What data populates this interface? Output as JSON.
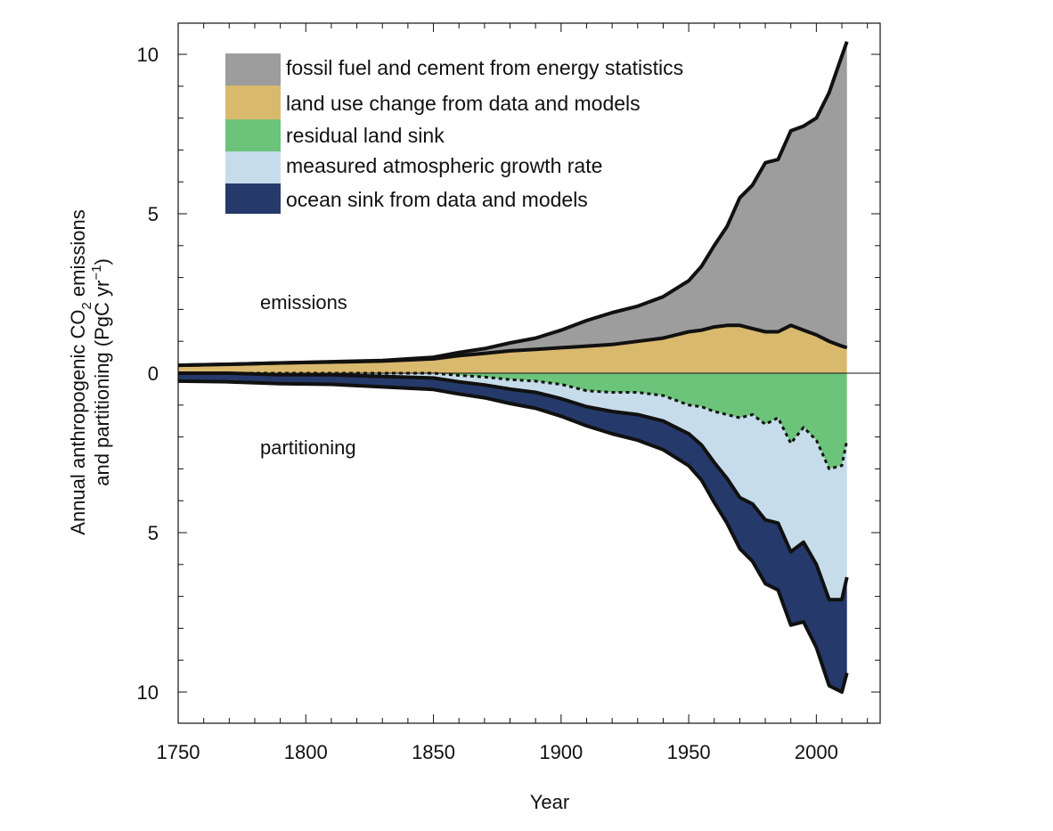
{
  "chart_data": {
    "type": "area",
    "xlabel": "Year",
    "ylabel_line1": "Annual anthropogenic CO",
    "ylabel_sub": "2",
    "ylabel_line1_end": " emissions",
    "ylabel_line2": "and partitioning (PgC yr",
    "ylabel_sup": "−1",
    "ylabel_line2_end": ")",
    "xlim": [
      1750,
      2025
    ],
    "ylim": [
      -11,
      11
    ],
    "x_ticks": [
      "1750",
      "1800",
      "1850",
      "1900",
      "1950",
      "2000"
    ],
    "x_tick_values": [
      1750,
      1800,
      1850,
      1900,
      1950,
      2000
    ],
    "y_ticks": [
      "10",
      "5",
      "0",
      "5",
      "10"
    ],
    "y_tick_values": [
      10,
      5,
      0,
      -5,
      -10
    ],
    "region_labels": {
      "emissions": "emissions",
      "partitioning": "partitioning"
    },
    "legend": {
      "placement": "top-left",
      "entries": [
        {
          "name": "fossil fuel and cement from energy statistics",
          "color": "#9d9d9d"
        },
        {
          "name": "land use change from data and models",
          "color": "#d9b96d"
        },
        {
          "name": "residual land sink",
          "color": "#6bc47a"
        },
        {
          "name": "measured atmospheric growth rate",
          "color": "#c6dcea"
        },
        {
          "name": "ocean sink from data and models",
          "color": "#253a6b"
        }
      ]
    },
    "years": [
      1750,
      1770,
      1790,
      1810,
      1830,
      1850,
      1860,
      1870,
      1880,
      1890,
      1900,
      1910,
      1920,
      1930,
      1940,
      1950,
      1955,
      1960,
      1965,
      1970,
      1975,
      1980,
      1985,
      1990,
      1995,
      2000,
      2005,
      2010,
      2012
    ],
    "series": [
      {
        "name": "land use change from data and models",
        "values": [
          0.25,
          0.28,
          0.32,
          0.35,
          0.38,
          0.45,
          0.55,
          0.62,
          0.7,
          0.75,
          0.8,
          0.85,
          0.9,
          1.0,
          1.1,
          1.3,
          1.35,
          1.45,
          1.5,
          1.5,
          1.4,
          1.3,
          1.3,
          1.5,
          1.35,
          1.2,
          1.0,
          0.85,
          0.8
        ]
      },
      {
        "name": "fossil fuel and cement from energy statistics",
        "values": [
          0.0,
          0.0,
          0.0,
          0.01,
          0.02,
          0.05,
          0.1,
          0.15,
          0.25,
          0.35,
          0.55,
          0.8,
          1.0,
          1.1,
          1.3,
          1.6,
          2.0,
          2.55,
          3.1,
          4.0,
          4.5,
          5.3,
          5.4,
          6.1,
          6.4,
          6.8,
          7.8,
          9.1,
          9.6
        ]
      },
      {
        "name": "measured atmospheric growth rate",
        "values": [
          0.0,
          0.0,
          0.05,
          0.05,
          0.1,
          0.15,
          0.2,
          0.25,
          0.3,
          0.35,
          0.45,
          0.5,
          0.6,
          0.7,
          0.8,
          0.9,
          1.2,
          1.6,
          2.0,
          2.5,
          2.8,
          3.0,
          3.3,
          3.4,
          3.6,
          3.9,
          4.1,
          4.2,
          4.3
        ]
      },
      {
        "name": "ocean sink from data and models",
        "values": [
          0.25,
          0.27,
          0.28,
          0.3,
          0.33,
          0.36,
          0.38,
          0.4,
          0.45,
          0.5,
          0.55,
          0.6,
          0.7,
          0.8,
          0.9,
          1.0,
          1.1,
          1.25,
          1.4,
          1.6,
          1.8,
          2.0,
          2.1,
          2.3,
          2.5,
          2.6,
          2.7,
          2.9,
          3.0
        ]
      },
      {
        "name": "residual land sink",
        "values": [
          0.0,
          0.0,
          0.0,
          0.0,
          0.0,
          0.0,
          0.07,
          0.12,
          0.2,
          0.25,
          0.35,
          0.55,
          0.6,
          0.6,
          0.7,
          1.0,
          1.05,
          1.2,
          1.3,
          1.4,
          1.3,
          1.6,
          1.4,
          2.2,
          1.7,
          2.1,
          3.0,
          2.9,
          2.1
        ]
      }
    ]
  }
}
